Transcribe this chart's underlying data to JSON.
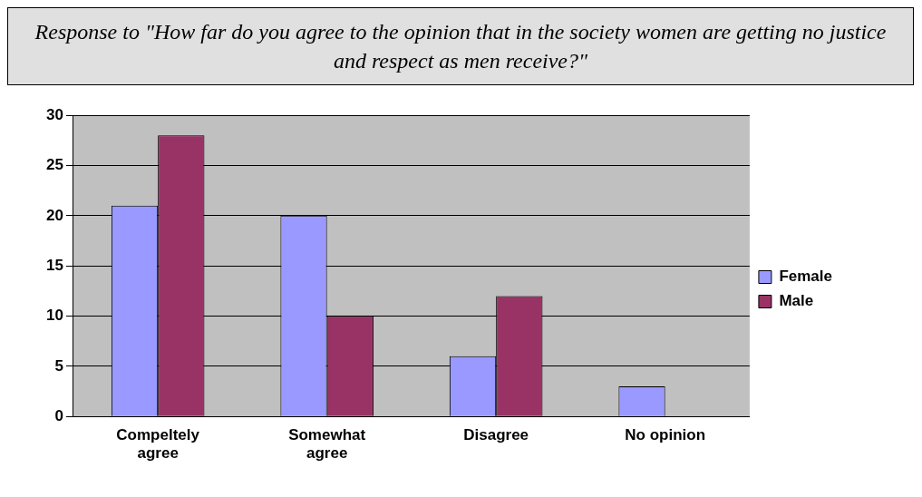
{
  "chart_data": {
    "type": "bar",
    "title": "Response to \"How far do you agree to the opinion that in the society women are getting no justice and respect as men receive?\"",
    "categories": [
      "Compeltely agree",
      "Somewhat agree",
      "Disagree",
      "No opinion"
    ],
    "series": [
      {
        "name": "Female",
        "color": "#9999ff",
        "values": [
          21,
          20,
          6,
          3
        ]
      },
      {
        "name": "Male",
        "color": "#993366",
        "values": [
          28,
          10,
          12,
          0
        ]
      }
    ],
    "ylim": [
      0,
      30
    ],
    "yticks": [
      0,
      5,
      10,
      15,
      20,
      25,
      30
    ],
    "grid": "y",
    "legend": "right"
  }
}
